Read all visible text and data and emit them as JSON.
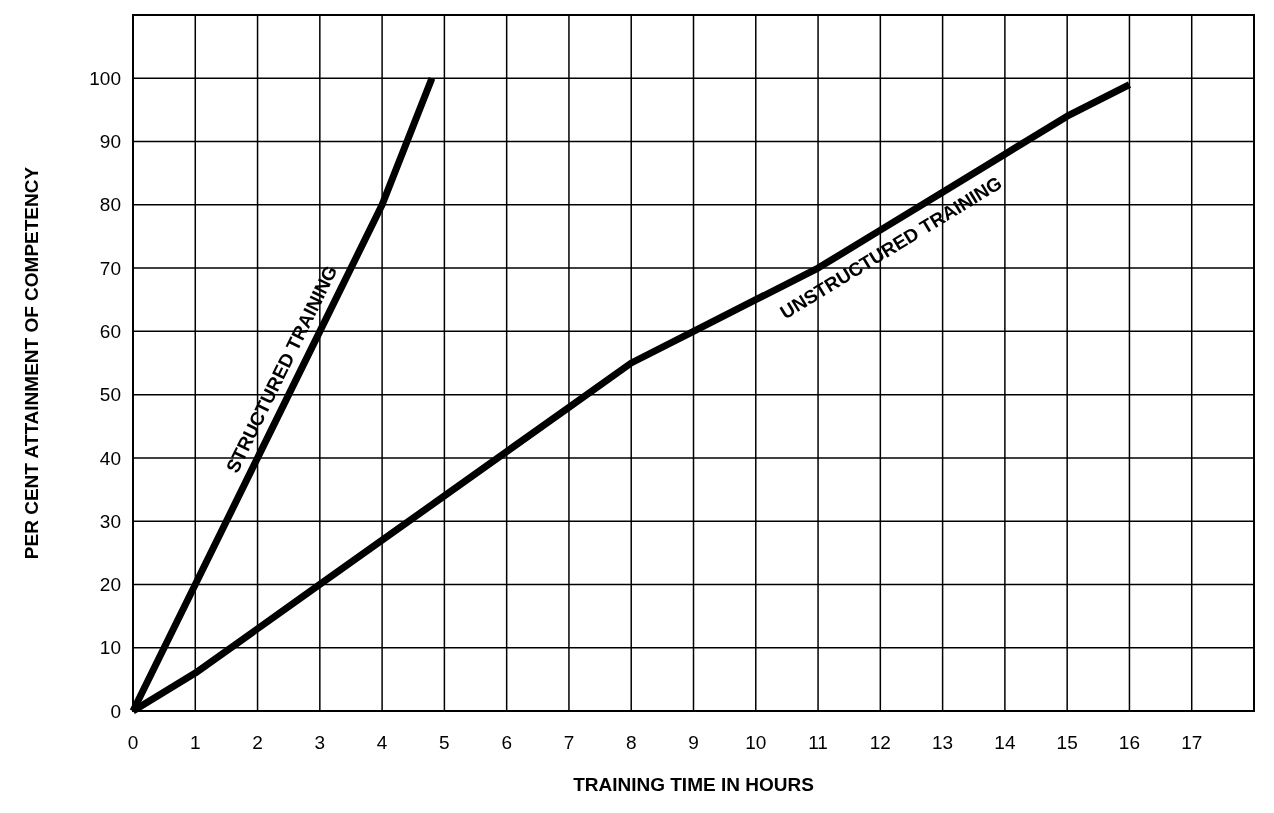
{
  "chart_data": {
    "type": "line",
    "xlabel": "TRAINING TIME IN HOURS",
    "ylabel": "PER CENT ATTAINMENT OF COMPETENCY",
    "xlim": [
      0,
      18
    ],
    "xticks": [
      0,
      1,
      2,
      3,
      4,
      5,
      6,
      7,
      8,
      9,
      10,
      11,
      12,
      13,
      14,
      15,
      16,
      17
    ],
    "ylim": [
      0,
      110
    ],
    "yticks": [
      0,
      10,
      20,
      30,
      40,
      50,
      60,
      70,
      80,
      90,
      100
    ],
    "grid": true,
    "legend": false,
    "marker": "none",
    "line_style": "solid",
    "series": [
      {
        "name": "STRUCTURED TRAINING",
        "color": "#000000",
        "x": [
          0,
          1,
          2,
          3,
          4,
          4.8
        ],
        "values": [
          0,
          20,
          40,
          60,
          80,
          100
        ]
      },
      {
        "name": "UNSTRUCTURED TRAINING",
        "color": "#000000",
        "x": [
          0,
          1,
          2,
          3,
          4,
          5,
          6,
          7,
          8,
          9,
          10,
          11,
          12,
          13,
          14,
          15,
          16
        ],
        "values": [
          0,
          6,
          13,
          20,
          27,
          34,
          41,
          48,
          55,
          60,
          65,
          70,
          76,
          82,
          88,
          94,
          99
        ]
      }
    ]
  }
}
